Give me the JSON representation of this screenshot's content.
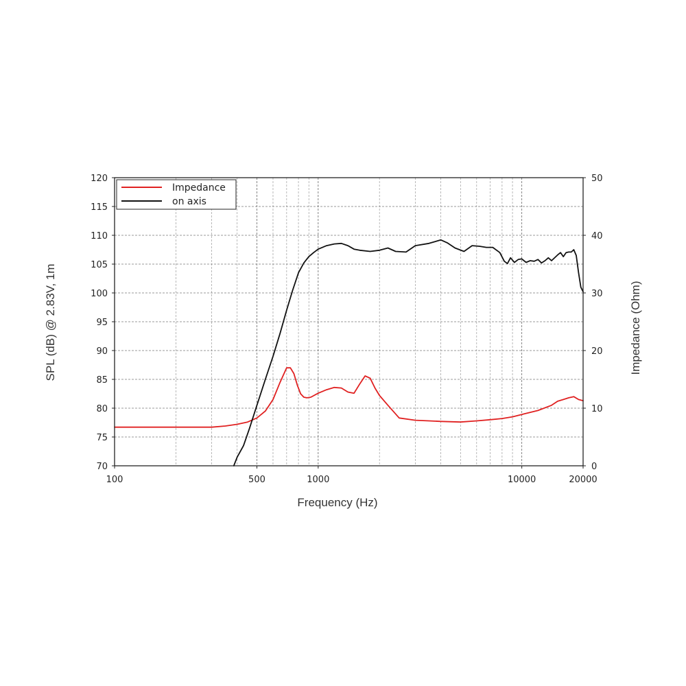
{
  "chart_data": {
    "type": "line",
    "xlabel": "Frequency (Hz)",
    "ylabel": "SPL (dB) @ 2.83V, 1m",
    "ylabel_right": "Impedance (Ohm)",
    "x_scale": "log",
    "xlim": [
      100,
      20000
    ],
    "ylim": [
      70,
      120
    ],
    "ylim_right": [
      0,
      50
    ],
    "x_ticks": [
      100,
      500,
      1000,
      10000,
      20000
    ],
    "x_tick_labels": [
      "100",
      "500",
      "1000",
      "10000",
      "20000"
    ],
    "y_ticks": [
      70,
      75,
      80,
      85,
      90,
      95,
      100,
      105,
      110,
      115,
      120
    ],
    "y_tick_labels": [
      "70",
      "75",
      "80",
      "85",
      "90",
      "95",
      "100",
      "105",
      "110",
      "115",
      "120"
    ],
    "y_ticks_right": [
      0,
      10,
      20,
      30,
      40,
      50
    ],
    "y_tick_labels_right": [
      "0",
      "10",
      "20",
      "30",
      "40",
      "50"
    ],
    "grid": true,
    "legend_position": "top-left",
    "series": [
      {
        "name": "Impedance",
        "color": "#e02020",
        "axis": "right",
        "x": [
          100,
          200,
          300,
          350,
          400,
          450,
          500,
          550,
          600,
          650,
          700,
          730,
          760,
          790,
          820,
          850,
          880,
          920,
          1000,
          1100,
          1200,
          1300,
          1400,
          1500,
          1600,
          1700,
          1800,
          1900,
          2000,
          2200,
          2500,
          3000,
          3500,
          4000,
          5000,
          6000,
          7000,
          8000,
          9000,
          10000,
          12000,
          14000,
          15000,
          16000,
          17000,
          18000,
          19000,
          20000
        ],
        "y": [
          6.7,
          6.7,
          6.7,
          6.9,
          7.2,
          7.6,
          8.3,
          9.5,
          11.5,
          14.5,
          17.0,
          17.0,
          16.0,
          14.0,
          12.5,
          11.9,
          11.8,
          11.9,
          12.6,
          13.2,
          13.6,
          13.5,
          12.8,
          12.6,
          14.2,
          15.6,
          15.2,
          13.5,
          12.2,
          10.5,
          8.3,
          7.9,
          7.8,
          7.7,
          7.6,
          7.8,
          8.0,
          8.2,
          8.5,
          8.9,
          9.6,
          10.5,
          11.2,
          11.5,
          11.8,
          12.0,
          11.5,
          11.3
        ]
      },
      {
        "name": "on axis",
        "color": "#111111",
        "axis": "left",
        "x": [
          385,
          400,
          430,
          460,
          500,
          550,
          600,
          650,
          700,
          750,
          800,
          850,
          900,
          950,
          1000,
          1100,
          1200,
          1300,
          1400,
          1500,
          1600,
          1800,
          2000,
          2200,
          2400,
          2700,
          3000,
          3500,
          4000,
          4300,
          4700,
          5200,
          5700,
          6200,
          6700,
          7200,
          7800,
          8200,
          8500,
          8800,
          9200,
          9600,
          10000,
          10500,
          11000,
          11500,
          12000,
          12500,
          13000,
          13500,
          14000,
          15000,
          15500,
          16000,
          16500,
          17000,
          17500,
          18000,
          18500,
          19000,
          19500,
          20000
        ],
        "y": [
          70.0,
          71.5,
          73.5,
          76.5,
          80.5,
          85.0,
          89.0,
          93.0,
          97.0,
          100.5,
          103.5,
          105.2,
          106.3,
          107.0,
          107.6,
          108.2,
          108.5,
          108.6,
          108.2,
          107.6,
          107.4,
          107.2,
          107.4,
          107.8,
          107.2,
          107.1,
          108.2,
          108.6,
          109.2,
          108.7,
          107.8,
          107.2,
          108.2,
          108.1,
          107.9,
          107.9,
          107.0,
          105.5,
          105.1,
          106.1,
          105.3,
          105.8,
          105.9,
          105.3,
          105.6,
          105.5,
          105.8,
          105.2,
          105.6,
          106.1,
          105.6,
          106.6,
          107.0,
          106.3,
          107.0,
          107.1,
          107.1,
          107.5,
          106.5,
          103.5,
          101.0,
          100.2
        ]
      }
    ]
  }
}
